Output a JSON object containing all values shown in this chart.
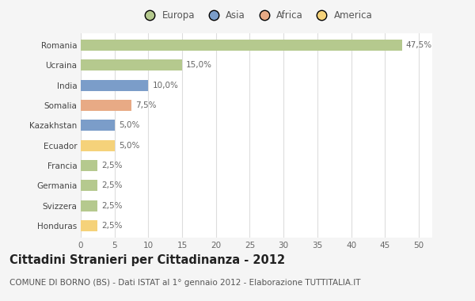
{
  "categories": [
    "Romania",
    "Ucraina",
    "India",
    "Somalia",
    "Kazakhstan",
    "Ecuador",
    "Francia",
    "Germania",
    "Svizzera",
    "Honduras"
  ],
  "values": [
    47.5,
    15.0,
    10.0,
    7.5,
    5.0,
    5.0,
    2.5,
    2.5,
    2.5,
    2.5
  ],
  "colors": [
    "#b5c98e",
    "#b5c98e",
    "#7b9dc9",
    "#e8aa85",
    "#7b9dc9",
    "#f5d27a",
    "#b5c98e",
    "#b5c98e",
    "#b5c98e",
    "#f5d27a"
  ],
  "labels": [
    "47,5%",
    "15,0%",
    "10,0%",
    "7,5%",
    "5,0%",
    "5,0%",
    "2,5%",
    "2,5%",
    "2,5%",
    "2,5%"
  ],
  "legend_labels": [
    "Europa",
    "Asia",
    "Africa",
    "America"
  ],
  "legend_colors": [
    "#b5c98e",
    "#7b9dc9",
    "#e8aa85",
    "#f5d27a"
  ],
  "title": "Cittadini Stranieri per Cittadinanza - 2012",
  "subtitle": "COMUNE DI BORNO (BS) - Dati ISTAT al 1° gennaio 2012 - Elaborazione TUTTITALIA.IT",
  "xlim": [
    0,
    52
  ],
  "xticks": [
    0,
    5,
    10,
    15,
    20,
    25,
    30,
    35,
    40,
    45,
    50
  ],
  "bg_color": "#f5f5f5",
  "plot_bg_color": "#ffffff",
  "grid_color": "#dddddd",
  "bar_height": 0.55,
  "title_fontsize": 10.5,
  "subtitle_fontsize": 7.5,
  "label_fontsize": 7.5,
  "tick_fontsize": 7.5,
  "legend_fontsize": 8.5
}
